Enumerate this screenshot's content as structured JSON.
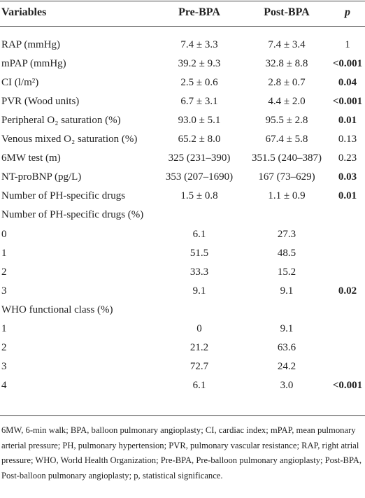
{
  "table": {
    "header": [
      "Variables",
      "Pre-BPA",
      "Post-BPA",
      "p"
    ],
    "rows": [
      {
        "cells": [
          "RAP (mmHg)",
          "7.4 ± 3.3",
          "7.4 ± 3.4",
          "1"
        ]
      },
      {
        "cells": [
          "mPAP (mmHg)",
          "39.2 ± 9.3",
          "32.8 ± 8.8",
          "<0.001"
        ],
        "p_bold": true
      },
      {
        "cells": [
          "CI (l/m²)",
          "2.5 ± 0.6",
          "2.8 ± 0.7",
          "0.04"
        ],
        "p_bold": true
      },
      {
        "cells": [
          "PVR (Wood units)",
          "6.7 ± 3.1",
          "4.4 ± 2.0",
          "<0.001"
        ],
        "p_bold": true
      },
      {
        "cells": [
          "Peripheral O₂ saturation (%)",
          "93.0 ± 5.1",
          "95.5 ± 2.8",
          "0.01"
        ],
        "p_bold": true
      },
      {
        "cells": [
          "Venous mixed O₂ saturation (%)",
          "65.2 ± 8.0",
          "67.4 ± 5.8",
          "0.13"
        ]
      },
      {
        "cells": [
          "6MW test (m)",
          "325 (231–390)",
          "351.5 (240–387)",
          "0.23"
        ]
      },
      {
        "cells": [
          "NT-proBNP (pg/L)",
          "353 (207–1690)",
          "167 (73–629)",
          "0.03"
        ],
        "p_bold": true
      },
      {
        "cells": [
          "Number of PH-specific drugs",
          "1.5 ± 0.8",
          "1.1 ± 0.9",
          "0.01"
        ],
        "p_bold": true
      },
      {
        "cells": [
          "Number of PH-specific drugs (%)",
          null,
          null,
          null
        ]
      },
      {
        "cells": [
          "0",
          "6.1",
          "27.3",
          null
        ]
      },
      {
        "cells": [
          "1",
          "51.5",
          "48.5",
          null
        ]
      },
      {
        "cells": [
          "2",
          "33.3",
          "15.2",
          null
        ]
      },
      {
        "cells": [
          "3",
          "9.1",
          "9.1",
          "0.02"
        ],
        "p_bold": true
      },
      {
        "cells": [
          "WHO functional class (%)",
          null,
          null,
          null
        ]
      },
      {
        "cells": [
          "1",
          "0",
          "9.1",
          null
        ]
      },
      {
        "cells": [
          "2",
          "21.2",
          "63.6",
          null
        ]
      },
      {
        "cells": [
          "3",
          "72.7",
          "24.2",
          null
        ]
      },
      {
        "cells": [
          "4",
          "6.1",
          "3.0",
          "<0.001"
        ],
        "p_bold": true
      }
    ],
    "footnote": "6MW, 6-min walk; BPA, balloon pulmonary angioplasty; CI, cardiac index; mPAP, mean pulmonary arterial pressure; PH, pulmonary hypertension; PVR, pulmonary vascular resistance; RAP, right atrial pressure; WHO, World Health Organization; Pre-BPA, Pre-balloon pulmonary angioplasty; Post-BPA, Post-balloon pulmonary angioplasty; p, statistical significance."
  }
}
